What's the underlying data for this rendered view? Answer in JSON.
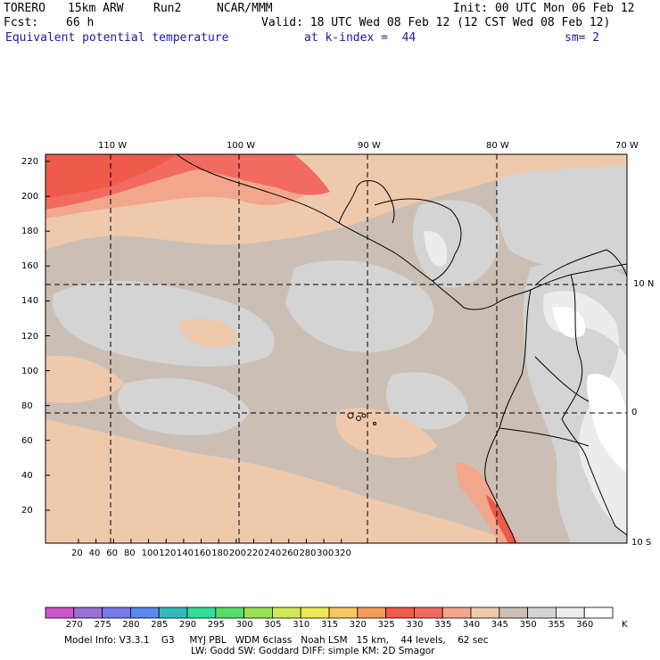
{
  "header": {
    "model": "TORERO",
    "resolution": "15km ARW",
    "run": "Run2",
    "org": "NCAR/MMM",
    "init": "Init: 00 UTC Mon 06 Feb 12",
    "fcst_label": "Fcst:",
    "fcst_value": "66 h",
    "valid": "Valid: 18 UTC Wed 08 Feb 12 (12 CST Wed 08 Feb 12)",
    "field": "Equivalent potential temperature",
    "level": "at k-index =  44",
    "smoothing": "sm= 2"
  },
  "map": {
    "lon_labels": [
      "110 W",
      "100 W",
      "90 W",
      "80 W",
      "70 W"
    ],
    "lat_labels": [
      "10 N",
      "0",
      "10 S"
    ],
    "y_ticks": [
      "220",
      "200",
      "180",
      "160",
      "140",
      "120",
      "100",
      "80",
      "60",
      "40",
      "20"
    ],
    "x_ticks": [
      "20",
      "40",
      "60",
      "80",
      "100",
      "120",
      "140",
      "160",
      "180",
      "200",
      "220",
      "240",
      "260",
      "280",
      "300",
      "320"
    ],
    "dominant_value_range_K": "335-360"
  },
  "colorbar": {
    "labels": [
      "270",
      "275",
      "280",
      "285",
      "290",
      "295",
      "300",
      "305",
      "310",
      "315",
      "320",
      "325",
      "330",
      "335",
      "340",
      "345",
      "350",
      "355",
      "360"
    ],
    "unit": "K",
    "colors": [
      "#cc55cc",
      "#9a70d6",
      "#7a78ea",
      "#5a88ee",
      "#33bbbb",
      "#33dd9a",
      "#55dd66",
      "#99e055",
      "#d0e855",
      "#f0e855",
      "#f6c860",
      "#f59a5a",
      "#ef5a4a",
      "#f26a60",
      "#f2a68c",
      "#efc9ac",
      "#cbbfb5",
      "#d4d4d4",
      "#ececec",
      "#ffffff"
    ]
  },
  "footer": {
    "line1": "Model Info: V3.3.1    G3     MYJ PBL   WDM 6class   Noah LSM   15 km,    44 levels,    62 sec",
    "line2": "LW: Godd SW: Goddard DIFF: simple KM: 2D Smagor"
  }
}
